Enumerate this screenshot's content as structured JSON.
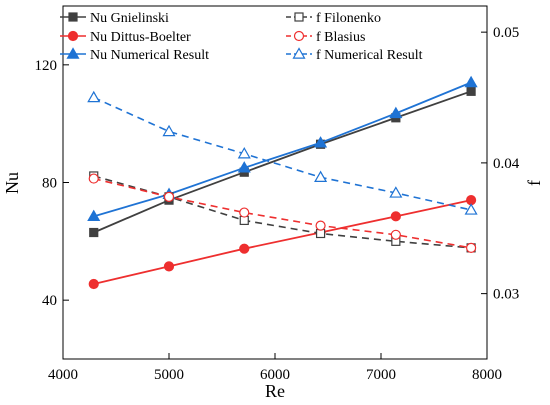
{
  "chart_data": {
    "type": "line",
    "xlabel": "Re",
    "ylabel_left": "Nu",
    "ylabel_right": "f",
    "xlim": [
      4000,
      8000
    ],
    "ylim_left": [
      20,
      140
    ],
    "ylim_right": [
      0.025,
      0.052
    ],
    "x_ticks": [
      4000,
      5000,
      6000,
      7000,
      8000
    ],
    "y_left_ticks": [
      40,
      80,
      120
    ],
    "y_right_ticks": [
      0.03,
      0.04,
      0.05
    ],
    "grid": false,
    "legend_position": "top",
    "series": [
      {
        "name": "Nu Gnielinski",
        "axis": "left",
        "color": "#404040",
        "marker": "square-filled",
        "dash": "solid",
        "x": [
          4290,
          5000,
          5710,
          6430,
          7140,
          7850
        ],
        "y": [
          63,
          74,
          83.5,
          93,
          102,
          111
        ]
      },
      {
        "name": "Nu Dittus-Boelter",
        "axis": "left",
        "color": "#ee2f2f",
        "marker": "circle-filled",
        "dash": "solid",
        "x": [
          4290,
          5000,
          5710,
          6430,
          7140,
          7850
        ],
        "y": [
          45.5,
          51.5,
          57.5,
          63,
          68.5,
          74
        ]
      },
      {
        "name": "Nu Numerical Result",
        "axis": "left",
        "color": "#1f73d4",
        "marker": "triangle-filled",
        "dash": "solid",
        "x": [
          4290,
          5000,
          5710,
          6430,
          7140,
          7850
        ],
        "y": [
          68.5,
          76,
          85,
          93.5,
          103.5,
          114
        ]
      },
      {
        "name": "f Filonenko",
        "axis": "right",
        "color": "#404040",
        "marker": "square-open",
        "dash": "dashed",
        "x": [
          4290,
          5000,
          5710,
          6430,
          7140,
          7850
        ],
        "y": [
          0.039,
          0.0374,
          0.0356,
          0.0346,
          0.034,
          0.0335
        ]
      },
      {
        "name": "f Blasius",
        "axis": "right",
        "color": "#ee2f2f",
        "marker": "circle-open",
        "dash": "dashed",
        "x": [
          4290,
          5000,
          5710,
          6430,
          7140,
          7850
        ],
        "y": [
          0.0388,
          0.0374,
          0.0362,
          0.0352,
          0.0345,
          0.0335
        ]
      },
      {
        "name": "f Numerical Result",
        "axis": "right",
        "color": "#1f73d4",
        "marker": "triangle-open",
        "dash": "dashed",
        "x": [
          4290,
          5000,
          5710,
          6430,
          7140,
          7850
        ],
        "y": [
          0.045,
          0.0424,
          0.0407,
          0.0389,
          0.0377,
          0.0364
        ]
      }
    ]
  }
}
